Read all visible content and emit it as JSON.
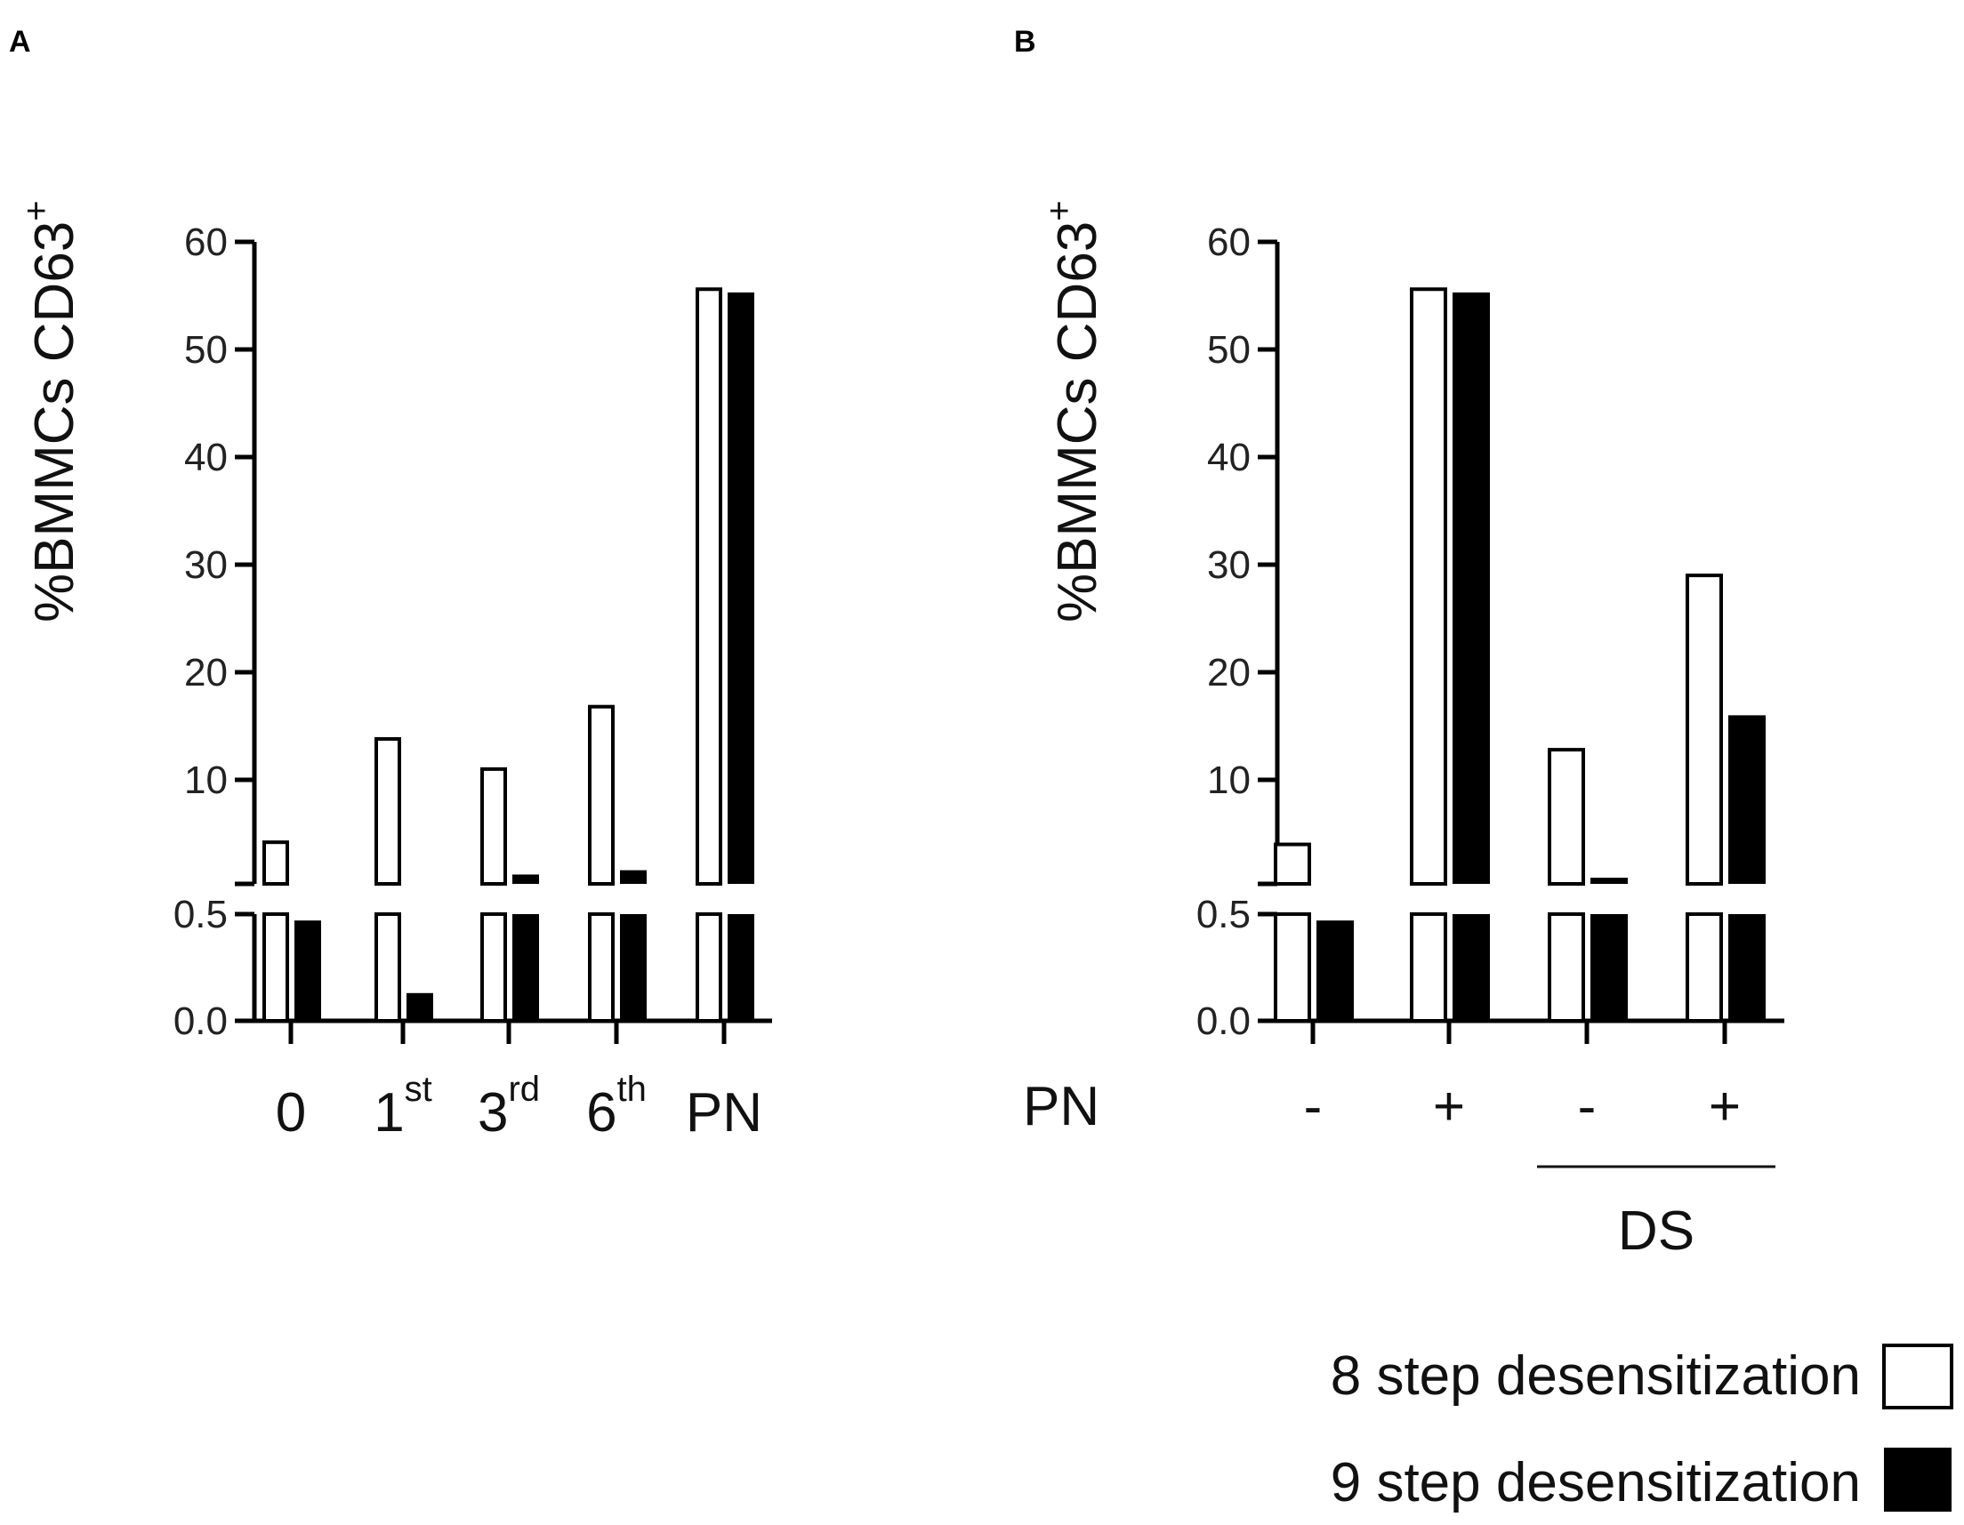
{
  "panels": {
    "a": "A",
    "b": "B"
  },
  "legend": {
    "white": "8 step desensitization",
    "black": "9 step desensitization",
    "colors": {
      "white": "#ffffff",
      "black": "#000000"
    }
  },
  "chart_data": [
    {
      "type": "bar",
      "panel": "A",
      "ylabel": "%BMMCs CD63",
      "ylabel_sup": "+",
      "y_axis": "broken",
      "ylim_lower": [
        0,
        0.5
      ],
      "ylim_upper": [
        1,
        60
      ],
      "yticks_lower": [
        "0.0",
        "0.5"
      ],
      "yticks_upper": [
        "10",
        "20",
        "30",
        "40",
        "50",
        "60"
      ],
      "categories": [
        {
          "base": "0",
          "sup": ""
        },
        {
          "base": "1",
          "sup": "st"
        },
        {
          "base": "3",
          "sup": "rd"
        },
        {
          "base": "6",
          "sup": "th"
        },
        {
          "base": "PN",
          "sup": ""
        }
      ],
      "series": [
        {
          "name": "8 step desensitization",
          "values": [
            4.2,
            13.8,
            11.0,
            16.8,
            55.6
          ]
        },
        {
          "name": "9 step desensitization",
          "values": [
            0.47,
            0.13,
            1.2,
            1.6,
            55.3
          ]
        }
      ]
    },
    {
      "type": "bar",
      "panel": "B",
      "ylabel": "%BMMCs CD63",
      "ylabel_sup": "+",
      "y_axis": "broken",
      "ylim_lower": [
        0,
        0.5
      ],
      "ylim_upper": [
        1,
        60
      ],
      "yticks_lower": [
        "0.0",
        "0.5"
      ],
      "yticks_upper": [
        "10",
        "20",
        "30",
        "40",
        "50",
        "60"
      ],
      "row_label": "PN",
      "categories": [
        "-",
        "+",
        "-",
        "+"
      ],
      "group_label": "DS",
      "series": [
        {
          "name": "8 step desensitization",
          "values": [
            4.0,
            55.6,
            12.8,
            29.0
          ]
        },
        {
          "name": "9 step desensitization",
          "values": [
            0.47,
            55.3,
            0.9,
            16.0
          ]
        }
      ]
    }
  ]
}
